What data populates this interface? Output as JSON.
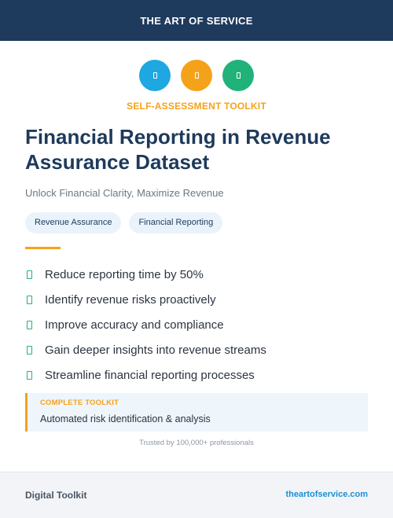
{
  "header": {
    "brand": "THE ART OF SERVICE"
  },
  "icons": [
    {
      "name": "document-icon",
      "color": "#1ea7e1"
    },
    {
      "name": "document-icon",
      "color": "#f5a21b"
    },
    {
      "name": "document-icon",
      "color": "#21b27a"
    }
  ],
  "kicker": "SELF-ASSESSMENT TOOLKIT",
  "title": "Financial Reporting in Revenue Assurance Dataset",
  "subtitle": "Unlock Financial Clarity, Maximize Revenue",
  "tags": [
    "Revenue Assurance",
    "Financial Reporting"
  ],
  "benefits": [
    "Reduce reporting time by 50%",
    "Identify revenue risks proactively",
    "Improve accuracy and compliance",
    "Gain deeper insights into revenue streams",
    "Streamline financial reporting processes"
  ],
  "callout": {
    "label": "COMPLETE TOOLKIT",
    "text": "Automated risk identification & analysis"
  },
  "trusted": "Trusted by 100,000+ professionals",
  "footer": {
    "left": "Digital Toolkit",
    "right": "theartofservice.com"
  },
  "colors": {
    "navy": "#1e3a5c",
    "accent": "#f5a21b",
    "check": "#21b27a",
    "link": "#1b8fd6"
  }
}
